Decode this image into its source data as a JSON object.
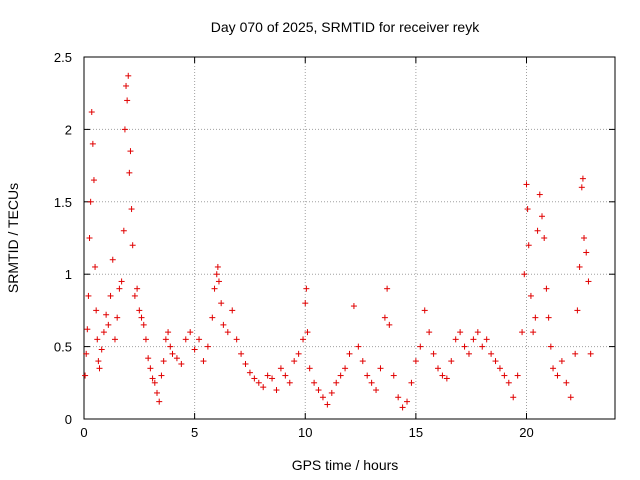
{
  "chart_data": {
    "type": "scatter",
    "title": "Day 070 of 2025, SRMTID for receiver reyk",
    "xlabel": "GPS time / hours",
    "ylabel": "SRMTID / TECUs",
    "xlim": [
      0,
      24
    ],
    "ylim": [
      0,
      2.5
    ],
    "grid": true,
    "x_ticks": [
      0,
      5,
      10,
      15,
      20
    ],
    "x_tick_labels": [
      "0",
      "5",
      "10",
      "15",
      "20"
    ],
    "y_ticks": [
      0,
      0.5,
      1,
      1.5,
      2,
      2.5
    ],
    "y_tick_labels": [
      "0",
      "0.5",
      "1",
      "1.5",
      "2",
      "2.5"
    ],
    "marker": "+",
    "color": "#e00000",
    "series": [
      {
        "name": "SRMTID",
        "points": [
          [
            0.05,
            0.3
          ],
          [
            0.1,
            0.45
          ],
          [
            0.15,
            0.62
          ],
          [
            0.2,
            0.85
          ],
          [
            0.25,
            1.25
          ],
          [
            0.3,
            1.5
          ],
          [
            0.35,
            2.12
          ],
          [
            0.4,
            1.9
          ],
          [
            0.45,
            1.65
          ],
          [
            0.5,
            1.05
          ],
          [
            0.55,
            0.75
          ],
          [
            0.6,
            0.55
          ],
          [
            0.65,
            0.4
          ],
          [
            0.7,
            0.35
          ],
          [
            0.8,
            0.48
          ],
          [
            0.9,
            0.6
          ],
          [
            1.0,
            0.72
          ],
          [
            1.1,
            0.65
          ],
          [
            1.2,
            0.85
          ],
          [
            1.3,
            1.1
          ],
          [
            1.4,
            0.55
          ],
          [
            1.5,
            0.7
          ],
          [
            1.6,
            0.9
          ],
          [
            1.7,
            0.95
          ],
          [
            1.8,
            1.3
          ],
          [
            1.85,
            2.0
          ],
          [
            1.9,
            2.3
          ],
          [
            1.95,
            2.2
          ],
          [
            2.0,
            2.37
          ],
          [
            2.05,
            1.7
          ],
          [
            2.1,
            1.85
          ],
          [
            2.15,
            1.45
          ],
          [
            2.2,
            1.2
          ],
          [
            2.3,
            0.85
          ],
          [
            2.4,
            0.9
          ],
          [
            2.5,
            0.75
          ],
          [
            2.6,
            0.7
          ],
          [
            2.7,
            0.65
          ],
          [
            2.8,
            0.55
          ],
          [
            2.9,
            0.42
          ],
          [
            3.0,
            0.35
          ],
          [
            3.1,
            0.28
          ],
          [
            3.2,
            0.25
          ],
          [
            3.3,
            0.18
          ],
          [
            3.4,
            0.12
          ],
          [
            3.5,
            0.3
          ],
          [
            3.6,
            0.4
          ],
          [
            3.7,
            0.55
          ],
          [
            3.8,
            0.6
          ],
          [
            3.9,
            0.5
          ],
          [
            4.0,
            0.45
          ],
          [
            4.2,
            0.42
          ],
          [
            4.4,
            0.38
          ],
          [
            4.6,
            0.55
          ],
          [
            4.8,
            0.6
          ],
          [
            5.0,
            0.48
          ],
          [
            5.2,
            0.55
          ],
          [
            5.4,
            0.4
          ],
          [
            5.6,
            0.5
          ],
          [
            5.8,
            0.7
          ],
          [
            5.9,
            0.9
          ],
          [
            6.0,
            1.0
          ],
          [
            6.05,
            1.05
          ],
          [
            6.1,
            0.95
          ],
          [
            6.2,
            0.8
          ],
          [
            6.3,
            0.65
          ],
          [
            6.5,
            0.6
          ],
          [
            6.7,
            0.75
          ],
          [
            6.9,
            0.55
          ],
          [
            7.1,
            0.45
          ],
          [
            7.3,
            0.38
          ],
          [
            7.5,
            0.32
          ],
          [
            7.7,
            0.28
          ],
          [
            7.9,
            0.25
          ],
          [
            8.1,
            0.22
          ],
          [
            8.3,
            0.3
          ],
          [
            8.5,
            0.28
          ],
          [
            8.7,
            0.2
          ],
          [
            8.9,
            0.35
          ],
          [
            9.1,
            0.3
          ],
          [
            9.3,
            0.25
          ],
          [
            9.5,
            0.4
          ],
          [
            9.7,
            0.45
          ],
          [
            9.9,
            0.55
          ],
          [
            10.0,
            0.8
          ],
          [
            10.05,
            0.9
          ],
          [
            10.1,
            0.6
          ],
          [
            10.2,
            0.35
          ],
          [
            10.4,
            0.25
          ],
          [
            10.6,
            0.2
          ],
          [
            10.8,
            0.15
          ],
          [
            11.0,
            0.1
          ],
          [
            11.2,
            0.18
          ],
          [
            11.4,
            0.25
          ],
          [
            11.6,
            0.3
          ],
          [
            11.8,
            0.35
          ],
          [
            12.0,
            0.45
          ],
          [
            12.2,
            0.78
          ],
          [
            12.4,
            0.5
          ],
          [
            12.6,
            0.4
          ],
          [
            12.8,
            0.3
          ],
          [
            13.0,
            0.25
          ],
          [
            13.2,
            0.2
          ],
          [
            13.4,
            0.35
          ],
          [
            13.6,
            0.7
          ],
          [
            13.7,
            0.9
          ],
          [
            13.8,
            0.65
          ],
          [
            14.0,
            0.3
          ],
          [
            14.2,
            0.15
          ],
          [
            14.4,
            0.08
          ],
          [
            14.6,
            0.12
          ],
          [
            14.8,
            0.25
          ],
          [
            15.0,
            0.4
          ],
          [
            15.2,
            0.5
          ],
          [
            15.4,
            0.75
          ],
          [
            15.6,
            0.6
          ],
          [
            15.8,
            0.45
          ],
          [
            16.0,
            0.35
          ],
          [
            16.2,
            0.3
          ],
          [
            16.4,
            0.28
          ],
          [
            16.6,
            0.4
          ],
          [
            16.8,
            0.55
          ],
          [
            17.0,
            0.6
          ],
          [
            17.2,
            0.5
          ],
          [
            17.4,
            0.45
          ],
          [
            17.6,
            0.55
          ],
          [
            17.8,
            0.6
          ],
          [
            18.0,
            0.5
          ],
          [
            18.2,
            0.55
          ],
          [
            18.4,
            0.45
          ],
          [
            18.6,
            0.4
          ],
          [
            18.8,
            0.35
          ],
          [
            19.0,
            0.3
          ],
          [
            19.2,
            0.25
          ],
          [
            19.4,
            0.15
          ],
          [
            19.6,
            0.3
          ],
          [
            19.8,
            0.6
          ],
          [
            19.9,
            1.0
          ],
          [
            20.0,
            1.62
          ],
          [
            20.05,
            1.45
          ],
          [
            20.1,
            1.2
          ],
          [
            20.2,
            0.85
          ],
          [
            20.3,
            0.6
          ],
          [
            20.4,
            0.7
          ],
          [
            20.5,
            1.3
          ],
          [
            20.6,
            1.55
          ],
          [
            20.7,
            1.4
          ],
          [
            20.8,
            1.25
          ],
          [
            20.9,
            0.9
          ],
          [
            21.0,
            0.7
          ],
          [
            21.1,
            0.5
          ],
          [
            21.2,
            0.35
          ],
          [
            21.4,
            0.3
          ],
          [
            21.6,
            0.4
          ],
          [
            21.8,
            0.25
          ],
          [
            22.0,
            0.15
          ],
          [
            22.2,
            0.45
          ],
          [
            22.3,
            0.75
          ],
          [
            22.4,
            1.05
          ],
          [
            22.5,
            1.6
          ],
          [
            22.55,
            1.66
          ],
          [
            22.6,
            1.25
          ],
          [
            22.7,
            1.15
          ],
          [
            22.8,
            0.95
          ],
          [
            22.9,
            0.45
          ]
        ]
      }
    ]
  }
}
